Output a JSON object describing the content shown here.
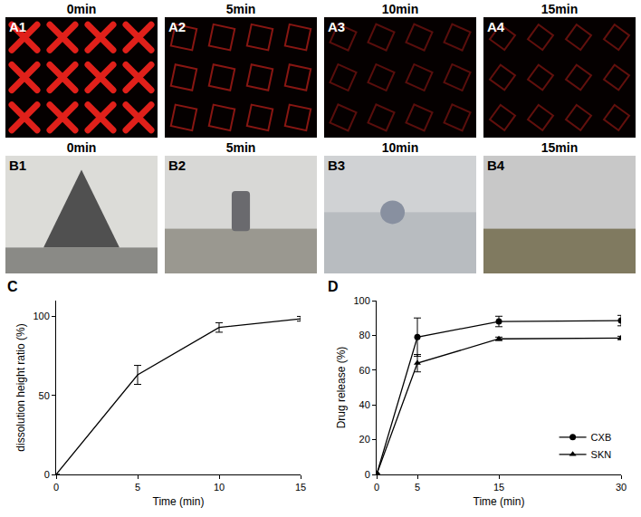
{
  "figure": {
    "rows": [
      {
        "time_labels": [
          "0min",
          "5min",
          "10min",
          "15min"
        ],
        "labels": [
          "A1",
          "A2",
          "A3",
          "A4"
        ]
      },
      {
        "time_labels": [
          "0min",
          "5min",
          "10min",
          "15min"
        ],
        "labels": [
          "B1",
          "B2",
          "B3",
          "B4"
        ]
      }
    ]
  },
  "chart_data": [
    {
      "type": "line",
      "panel": "C",
      "x_label": "Time (min)",
      "y_label": "dissolution height ratio (%)",
      "x": [
        0,
        5,
        10,
        15
      ],
      "values": [
        0,
        63,
        93,
        98.5
      ],
      "errors": [
        0,
        6,
        3,
        1.5
      ],
      "color": "#000000",
      "marker": "none",
      "line_style": "solid",
      "xlim": [
        0,
        15
      ],
      "xticks": [
        0,
        5,
        10,
        15
      ],
      "ylim": [
        0,
        110
      ],
      "yticks": [
        0,
        50,
        100
      ],
      "grid": false
    },
    {
      "type": "line",
      "panel": "D",
      "x_label": "Time (min)",
      "y_label": "Drug release (%)",
      "x": [
        0,
        5,
        15,
        30
      ],
      "series": [
        {
          "name": "CXB",
          "color": "#000000",
          "marker": "circle",
          "line_style": "solid",
          "values": [
            0,
            79,
            88,
            88.5
          ],
          "errors": [
            0,
            11,
            3,
            3
          ]
        },
        {
          "name": "SKN",
          "color": "#000000",
          "marker": "triangle",
          "line_style": "solid",
          "values": [
            0,
            64,
            78,
            78.5
          ],
          "errors": [
            0,
            5,
            1,
            1
          ]
        }
      ],
      "xlim": [
        0,
        30
      ],
      "xticks": [
        0,
        5,
        15,
        30
      ],
      "ylim": [
        0,
        100
      ],
      "yticks": [
        0,
        20,
        40,
        60,
        80,
        100
      ],
      "grid": false,
      "legend": "lower right"
    }
  ]
}
